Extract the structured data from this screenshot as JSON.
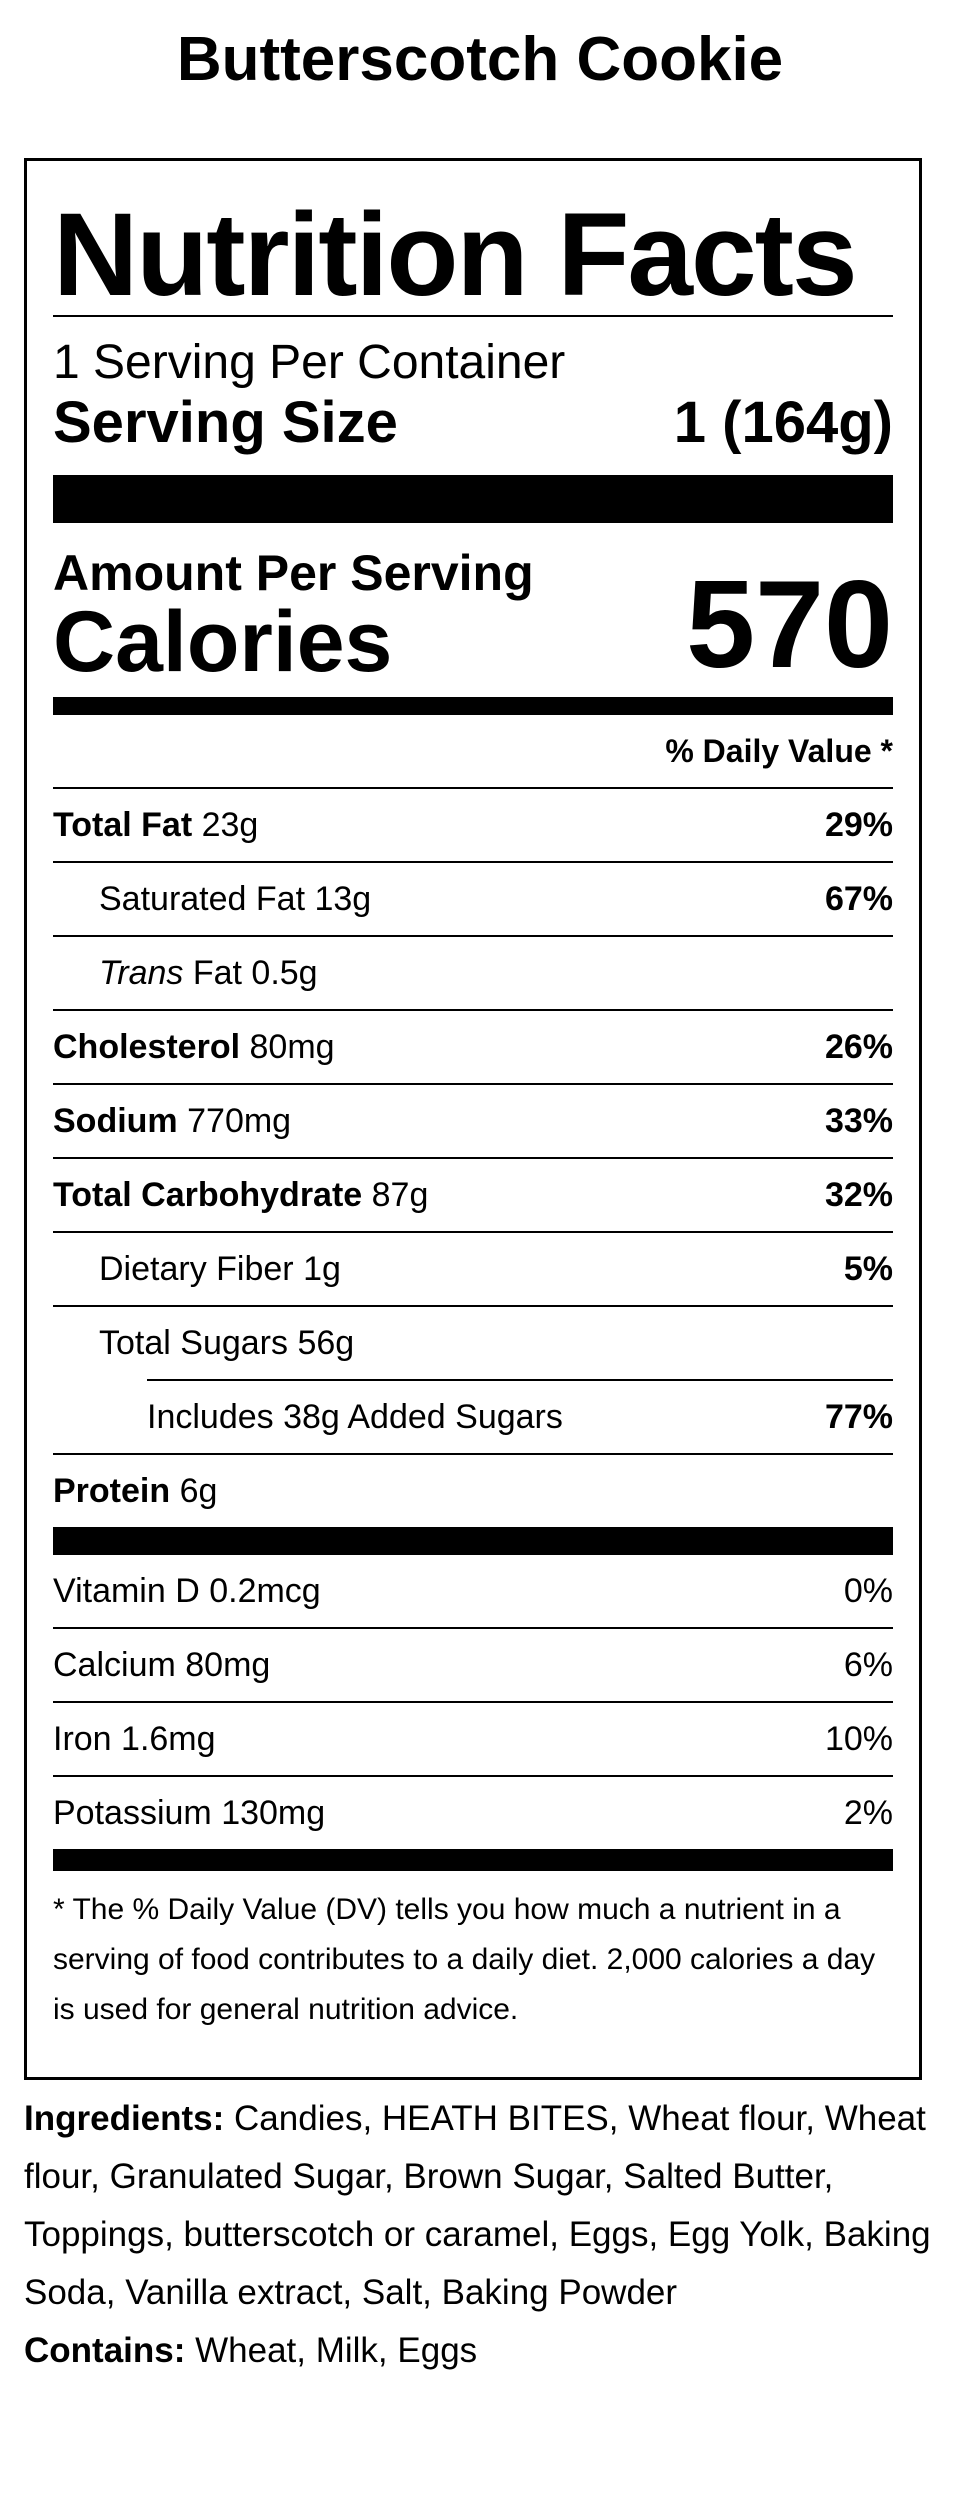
{
  "product": {
    "title": "Butterscotch Cookie"
  },
  "label": {
    "title": "Nutrition Facts",
    "servings_per_container": "1 Serving Per Container",
    "serving_size_label": "Serving Size",
    "serving_size_value": "1 (164g)",
    "amount_per_serving": "Amount Per Serving",
    "calories_label": "Calories",
    "calories_value": "570",
    "daily_value_header": "% Daily Value *",
    "nutrients": [
      {
        "name": "Total Fat",
        "amount": "23g",
        "dv": "29%"
      },
      {
        "name": "Saturated Fat",
        "amount": "13g",
        "dv": "67%"
      },
      {
        "name_italic": "Trans",
        "name": "Fat",
        "amount": "0.5g",
        "dv": ""
      },
      {
        "name": "Cholesterol",
        "amount": "80mg",
        "dv": "26%"
      },
      {
        "name": "Sodium",
        "amount": "770mg",
        "dv": "33%"
      },
      {
        "name": "Total Carbohydrate",
        "amount": "87g",
        "dv": "32%"
      },
      {
        "name": "Dietary Fiber",
        "amount": "1g",
        "dv": "5%"
      },
      {
        "name": "Total Sugars",
        "amount": "56g",
        "dv": ""
      },
      {
        "name": "Includes 38g Added Sugars",
        "amount": "",
        "dv": "77%"
      },
      {
        "name": "Protein",
        "amount": "6g",
        "dv": ""
      }
    ],
    "vitamins": [
      {
        "name": "Vitamin D",
        "amount": "0.2mcg",
        "dv": "0%"
      },
      {
        "name": "Calcium",
        "amount": "80mg",
        "dv": "6%"
      },
      {
        "name": "Iron",
        "amount": "1.6mg",
        "dv": "10%"
      },
      {
        "name": "Potassium",
        "amount": "130mg",
        "dv": "2%"
      }
    ],
    "footnote": "* The % Daily Value (DV) tells you how much a nutrient in a serving of food contributes to a daily diet. 2,000 calories a day is used for general nutrition advice."
  },
  "ingredients": {
    "label": "Ingredients:",
    "text": "Candies, HEATH BITES, Wheat flour, Wheat flour, Granulated Sugar, Brown Sugar, Salted Butter, Toppings, butterscotch or caramel, Eggs, Egg Yolk, Baking Soda, Vanilla extract, Salt, Baking Powder",
    "contains_label": "Contains:",
    "contains_text": "Wheat, Milk, Eggs"
  }
}
